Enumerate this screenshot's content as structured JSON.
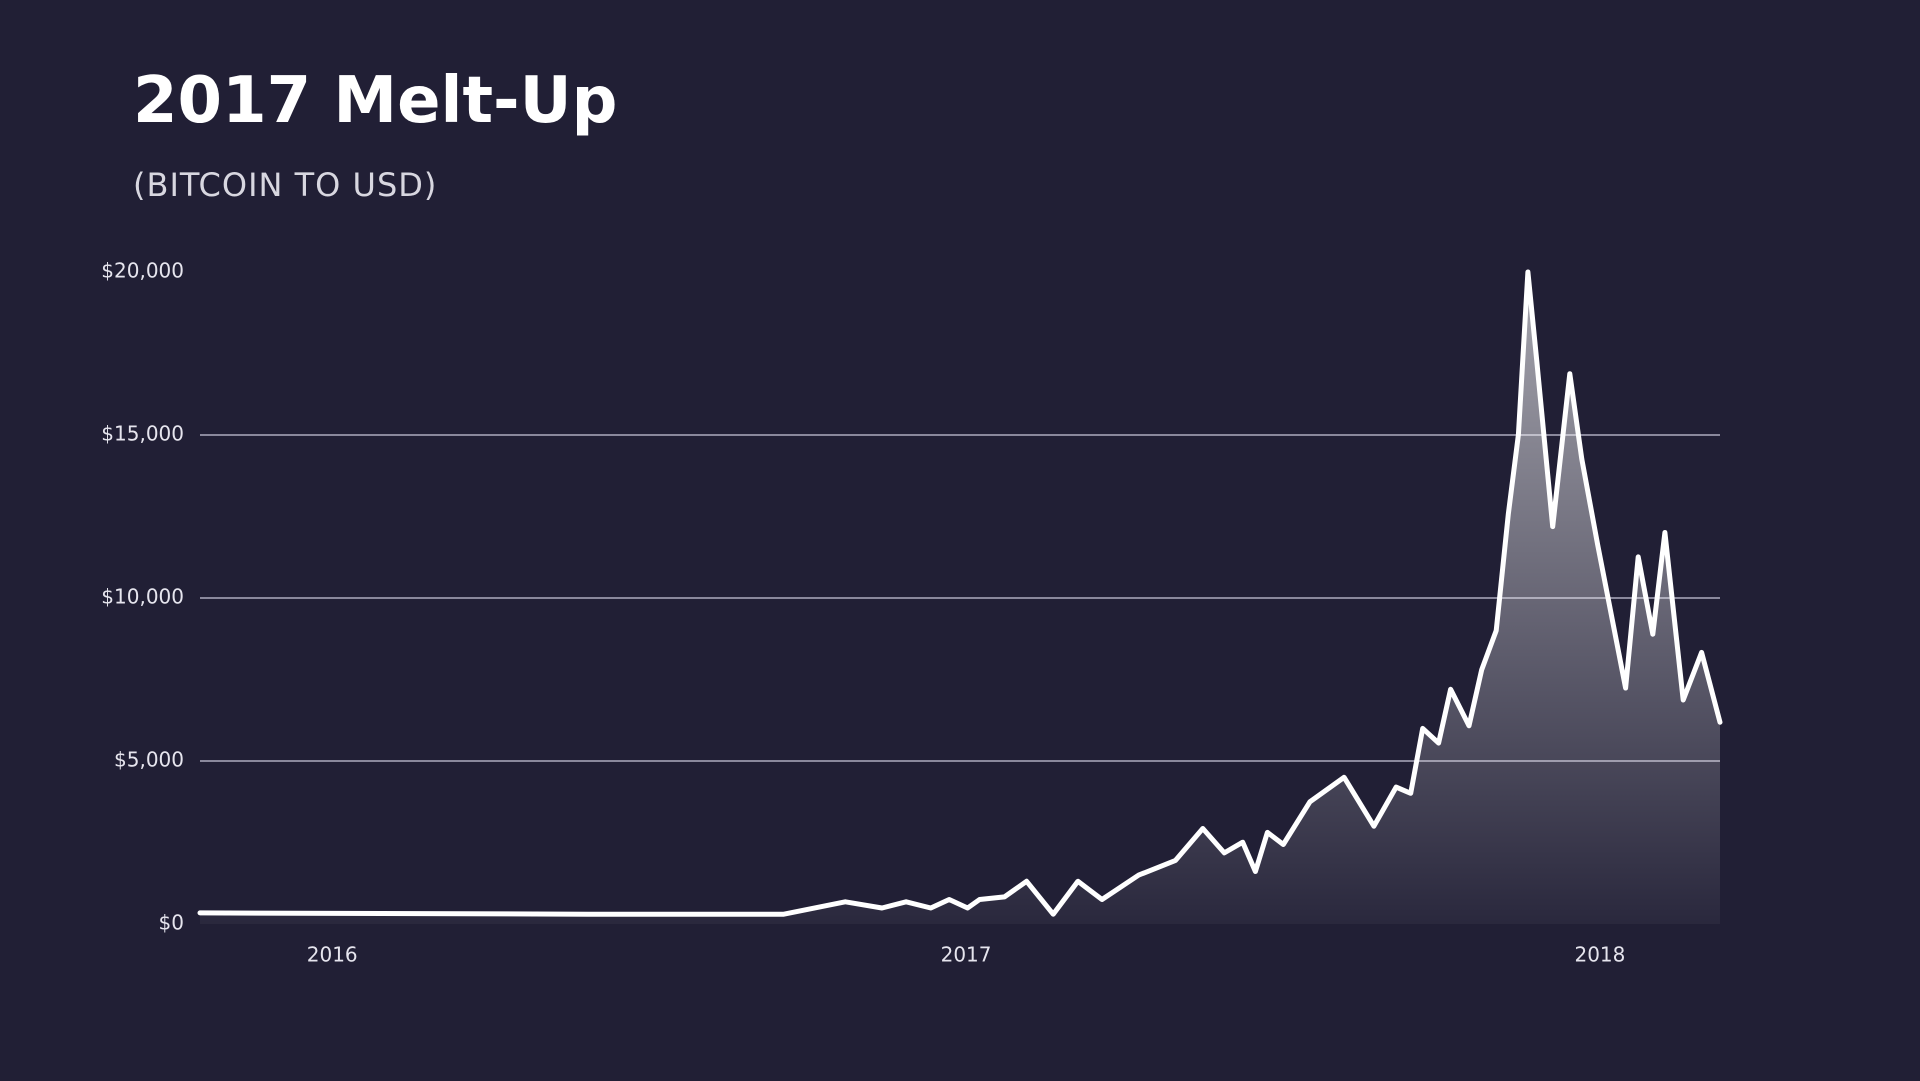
{
  "chart_data": {
    "type": "area",
    "title": "2017 Melt-Up",
    "subtitle": "(BITCOIN TO USD)",
    "x": [
      2015.793,
      2016.405,
      2016.714,
      2016.811,
      2016.869,
      2016.907,
      2016.946,
      2016.975,
      2017.004,
      2017.023,
      2017.062,
      2017.097,
      2017.139,
      2017.178,
      2017.216,
      2017.274,
      2017.332,
      2017.375,
      2017.409,
      2017.438,
      2017.458,
      2017.477,
      2017.502,
      2017.544,
      2017.598,
      2017.645,
      2017.68,
      2017.703,
      2017.722,
      2017.747,
      2017.766,
      2017.795,
      2017.815,
      2017.838,
      2017.857,
      2017.873,
      2017.888,
      2017.902,
      2017.927,
      2017.954,
      2017.973,
      2017.998,
      2018.042,
      2018.062,
      2018.085,
      2018.104,
      2018.133,
      2018.162,
      2018.191
    ],
    "series": [
      {
        "name": "Bitcoin",
        "color": "#ffffff",
        "values": [
          340,
          300,
          300,
          680,
          490,
          680,
          490,
          750,
          490,
          750,
          830,
          1310,
          300,
          1310,
          750,
          1500,
          1950,
          2930,
          2180,
          2510,
          1610,
          2810,
          2440,
          3750,
          4500,
          3000,
          4200,
          4010,
          6000,
          5550,
          7200,
          6080,
          7800,
          9000,
          12570,
          15010,
          20000,
          17260,
          12190,
          16880,
          14260,
          11630,
          7240,
          11260,
          8890,
          12010,
          6870,
          8330,
          6190
        ]
      }
    ],
    "xlim": [
      2015.793,
      2018.191
    ],
    "xticks": [
      2016,
      2017,
      2018
    ],
    "ylim": [
      0,
      20000
    ],
    "yticks": [
      {
        "value": 0,
        "label": "$0"
      },
      {
        "value": 5000,
        "label": "$5,000"
      },
      {
        "value": 10000,
        "label": "$10,000"
      },
      {
        "value": 15000,
        "label": "$15,000"
      },
      {
        "value": 20000,
        "label": "$20,000"
      }
    ],
    "grid": true
  }
}
